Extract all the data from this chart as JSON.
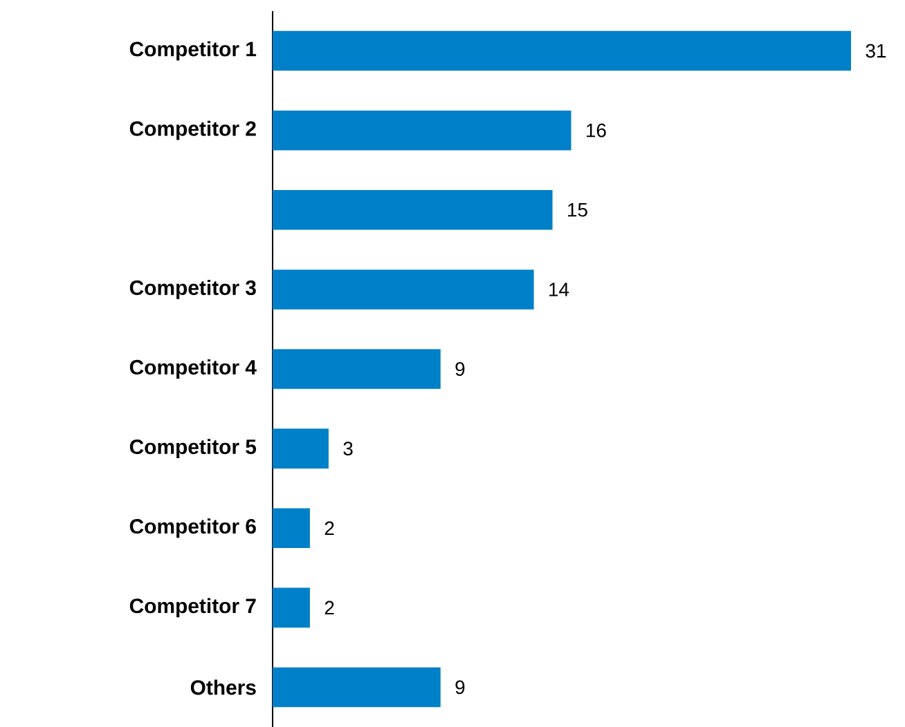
{
  "chart_data": {
    "type": "bar",
    "orientation": "horizontal",
    "categories": [
      "Competitor 1",
      "Competitor 2",
      null,
      "Competitor 3",
      "Competitor 4",
      "Competitor 5",
      "Competitor 6",
      "Competitor 7",
      "Others"
    ],
    "values": [
      31,
      16,
      15,
      14,
      9,
      3,
      2,
      2,
      9
    ],
    "color": "#0080c8",
    "data_labels": true
  }
}
